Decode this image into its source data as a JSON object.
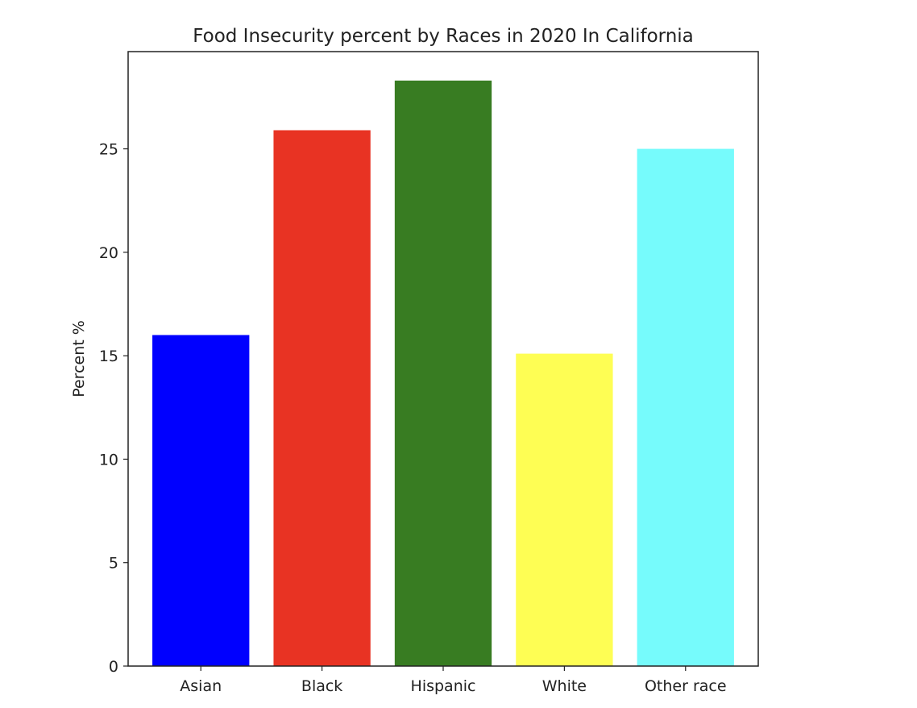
{
  "chart_data": {
    "type": "bar",
    "title": "Food Insecurity percent by Races in 2020 In California",
    "xlabel": "",
    "ylabel": "Percent %",
    "categories": [
      "Asian",
      "Black",
      "Hispanic",
      "White",
      "Other race"
    ],
    "values": [
      16.0,
      25.9,
      28.3,
      15.1,
      25.0
    ],
    "colors": [
      "#0000ff",
      "#e83323",
      "#387c22",
      "#fefe54",
      "#76fbfc"
    ],
    "ylim": [
      0,
      29.7
    ],
    "yticks": [
      0,
      5,
      10,
      15,
      20,
      25
    ],
    "grid": false,
    "legend": false
  }
}
